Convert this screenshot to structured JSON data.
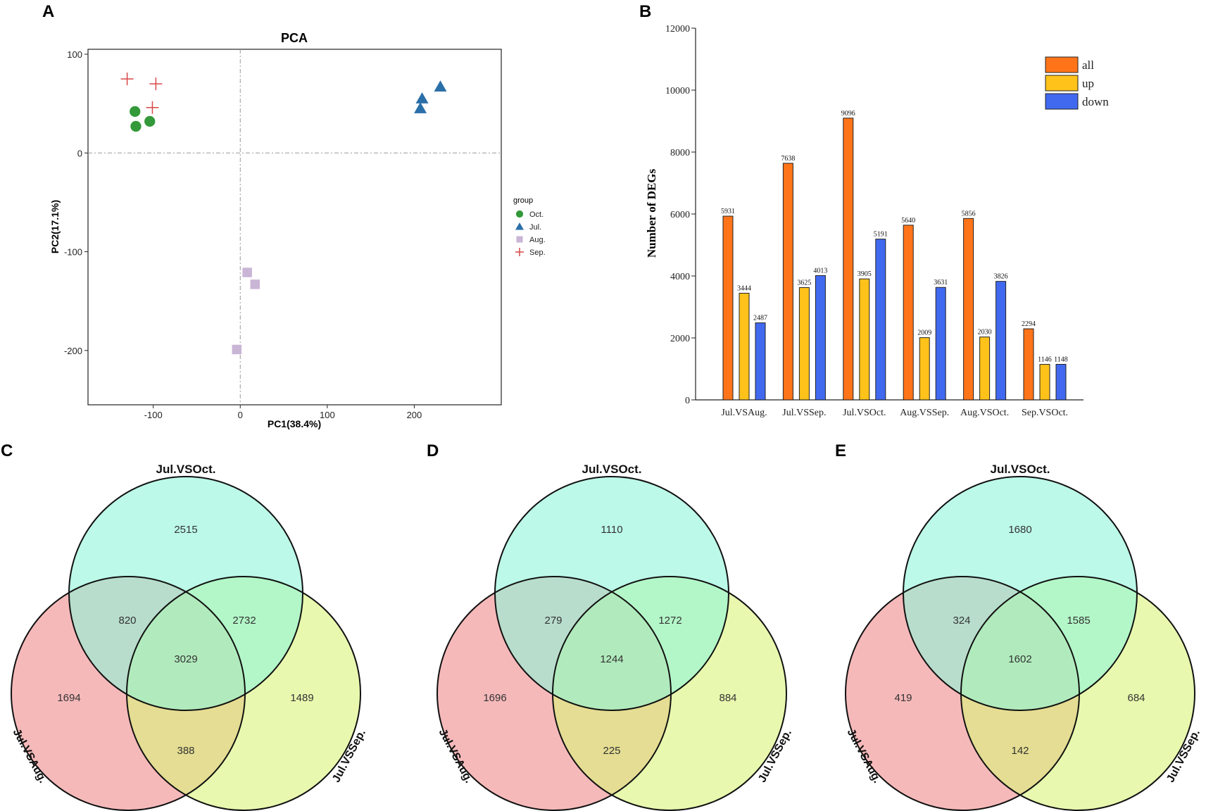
{
  "panels": {
    "A": {
      "letter": "A",
      "chart_data": {
        "type": "scatter",
        "title": "PCA",
        "xlabel": "PC1(38.4%)",
        "ylabel": "PC2(17.1%)",
        "xlim": [
          -175,
          300
        ],
        "ylim": [
          -255,
          105
        ],
        "xticks": [
          -100,
          0,
          100,
          200
        ],
        "yticks": [
          100,
          0,
          -100,
          -200
        ],
        "legend_title": "group",
        "series": [
          {
            "name": "Oct.",
            "marker": "circle",
            "color": "#33993a",
            "points": [
              [
                -121,
                42
              ],
              [
                -120,
                27
              ],
              [
                -104,
                32
              ]
            ]
          },
          {
            "name": "Jul.",
            "marker": "triangle",
            "color": "#2a6fa8",
            "points": [
              [
                209,
                55
              ],
              [
                207,
                45
              ],
              [
                230,
                67
              ]
            ]
          },
          {
            "name": "Aug.",
            "marker": "square",
            "color": "#c9b5d6",
            "points": [
              [
                8,
                -121
              ],
              [
                17,
                -133
              ],
              [
                -4,
                -199
              ]
            ]
          },
          {
            "name": "Sep.",
            "marker": "plus",
            "color": "#d9484a",
            "points": [
              [
                -130,
                75
              ],
              [
                -97,
                70
              ],
              [
                -101,
                46
              ]
            ]
          }
        ]
      }
    },
    "B": {
      "letter": "B",
      "chart_data": {
        "type": "bar",
        "title": "",
        "xlabel": "",
        "ylabel": "Number of DEGs",
        "ylim": [
          0,
          12000
        ],
        "yticks": [
          0,
          2000,
          4000,
          6000,
          8000,
          10000,
          12000
        ],
        "categories": [
          "Jul.VSAug.",
          "Jul.VSSep.",
          "Jul.VSOct.",
          "Aug.VSSep.",
          "Aug.VSOct.",
          "Sep.VSOct."
        ],
        "series": [
          {
            "name": "all",
            "color": "#ff7418",
            "values": [
              5931,
              7638,
              9096,
              5640,
              5856,
              2294
            ]
          },
          {
            "name": "up",
            "color": "#ffc21a",
            "values": [
              3444,
              3625,
              3905,
              2009,
              2030,
              1146
            ]
          },
          {
            "name": "down",
            "color": "#4169f0",
            "values": [
              2487,
              4013,
              5191,
              3631,
              3826,
              1148
            ]
          }
        ],
        "legend_position": "top-right"
      }
    },
    "C": {
      "letter": "C",
      "chart_data": {
        "type": "venn",
        "sets": {
          "top": "Jul.VSOct.",
          "left": "Jul.VSAug.",
          "right": "Jul.VSSep."
        },
        "regions": {
          "top_only": "2515",
          "top_left": "820",
          "top_right": "2732",
          "center": "3029",
          "left_only": "1694",
          "right_only": "1489",
          "left_right": "388"
        }
      }
    },
    "D": {
      "letter": "D",
      "chart_data": {
        "type": "venn",
        "sets": {
          "top": "Jul.VSOct.",
          "left": "Jul.VSAug.",
          "right": "Jul.VSSep."
        },
        "regions": {
          "top_only": "1110",
          "top_left": "279",
          "top_right": "1272",
          "center": "1244",
          "left_only": "1696",
          "right_only": "884",
          "left_right": "225"
        }
      }
    },
    "E": {
      "letter": "E",
      "chart_data": {
        "type": "venn",
        "sets": {
          "top": "Jul.VSOct.",
          "left": "Jul.VSAug.",
          "right": "Jul.VSSep."
        },
        "regions": {
          "top_only": "1680",
          "top_left": "324",
          "top_right": "1585",
          "center": "1602",
          "left_only": "419",
          "right_only": "684",
          "left_right": "142"
        }
      }
    }
  },
  "colors": {
    "venn_top": "#8ff5d9",
    "venn_left": "#f08a8c",
    "venn_right": "#d9f57a"
  }
}
